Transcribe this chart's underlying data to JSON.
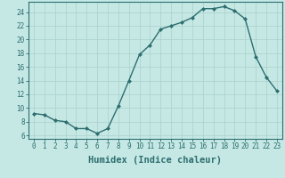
{
  "x": [
    0,
    1,
    2,
    3,
    4,
    5,
    6,
    7,
    8,
    9,
    10,
    11,
    12,
    13,
    14,
    15,
    16,
    17,
    18,
    19,
    20,
    21,
    22,
    23
  ],
  "y": [
    9.2,
    9.0,
    8.2,
    8.0,
    7.0,
    7.0,
    6.3,
    7.0,
    10.3,
    14.0,
    17.8,
    19.2,
    21.5,
    22.0,
    22.5,
    23.2,
    24.5,
    24.5,
    24.8,
    24.2,
    23.0,
    17.5,
    14.5,
    12.5
  ],
  "line_color": "#2d6e6e",
  "marker": "D",
  "marker_size": 2.0,
  "bg_color": "#c5e8e5",
  "grid_color": "#aed4d0",
  "xlabel": "Humidex (Indice chaleur)",
  "xlim": [
    -0.5,
    23.5
  ],
  "ylim": [
    5.5,
    25.5
  ],
  "yticks": [
    6,
    8,
    10,
    12,
    14,
    16,
    18,
    20,
    22,
    24
  ],
  "xticks": [
    0,
    1,
    2,
    3,
    4,
    5,
    6,
    7,
    8,
    9,
    10,
    11,
    12,
    13,
    14,
    15,
    16,
    17,
    18,
    19,
    20,
    21,
    22,
    23
  ],
  "tick_fontsize": 5.5,
  "xlabel_fontsize": 7.5,
  "axis_color": "#2d6e6e",
  "line_width": 1.0
}
